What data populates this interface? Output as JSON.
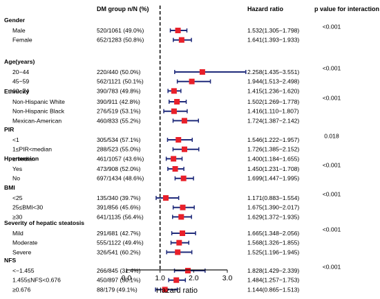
{
  "headers": {
    "dm": "DM group n/N (%)",
    "hr": "Hazard ratio",
    "p": "p value for interaction"
  },
  "chart_data": {
    "type": "forest",
    "xlabel": "Hazard ratio",
    "xlim": [
      0.0,
      3.0
    ],
    "xticks": [
      "0.0",
      "1.0",
      "2.0",
      "3.0"
    ],
    "reference_line": 1.0,
    "marker_color": "#e8202a",
    "ci_color": "#1f2a7a",
    "groups": [
      {
        "label": "Gender",
        "p": "<0.001",
        "rows": [
          {
            "label": "Male",
            "n": "520/1061 (49.0%)",
            "hr": 1.532,
            "lo": 1.305,
            "hi": 1.798,
            "text": "1.532(1.305−1.798)"
          },
          {
            "label": "Female",
            "n": "652/1283 (50.8%)",
            "hr": 1.641,
            "lo": 1.393,
            "hi": 1.933,
            "text": "1.641(1.393−1.933)"
          }
        ]
      },
      {
        "label": "Age(years)",
        "p": "<0.001",
        "rows": [
          {
            "label": "20−44",
            "n": "220/440 (50.0%)",
            "hr": 2.258,
            "lo": 1.435,
            "hi": 3.551,
            "text": "2.258(1.435−3.551)"
          },
          {
            "label": "45−59",
            "n": "562/1121 (50.1%)",
            "hr": 1.944,
            "lo": 1.513,
            "hi": 2.498,
            "text": "1.944(1.513−2.498)"
          },
          {
            "label": "60−74",
            "n": "390/783 (49.8%)",
            "hr": 1.415,
            "lo": 1.236,
            "hi": 1.62,
            "text": "1.415(1.236−1.620)"
          }
        ]
      },
      {
        "label": "Ethnicity",
        "p": "<0.001",
        "rows": [
          {
            "label": "Non-Hispanic White",
            "n": "390/911 (42.8%)",
            "hr": 1.502,
            "lo": 1.269,
            "hi": 1.778,
            "text": "1.502(1.269−1.778)"
          },
          {
            "label": "Non-Hispanic Black",
            "n": "276/519 (53.1%)",
            "hr": 1.416,
            "lo": 1.11,
            "hi": 1.807,
            "text": "1.416(1.110−1.807)"
          },
          {
            "label": "Mexican-American",
            "n": "460/833 (55.2%)",
            "hr": 1.724,
            "lo": 1.387,
            "hi": 2.142,
            "text": "1.724(1.387−2.142)"
          }
        ]
      },
      {
        "label": "PIR",
        "p": "0.018",
        "rows": [
          {
            "label": "<1",
            "n": "305/534 (57.1%)",
            "hr": 1.546,
            "lo": 1.222,
            "hi": 1.957,
            "text": "1.546(1.222−1.957)"
          },
          {
            "label": "1≤PIR<median",
            "n": "288/523 (55.0%)",
            "hr": 1.726,
            "lo": 1.385,
            "hi": 2.152,
            "text": "1.726(1.385−2.152)"
          },
          {
            "label": "≥median",
            "n": "461/1057 (43.6%)",
            "hr": 1.4,
            "lo": 1.184,
            "hi": 1.655,
            "text": "1.400(1.184−1.655)"
          }
        ]
      },
      {
        "label": "Hpertension",
        "p": "<0.001",
        "rows": [
          {
            "label": "Yes",
            "n": "473/908 (52.0%)",
            "hr": 1.45,
            "lo": 1.231,
            "hi": 1.708,
            "text": "1.450(1.231−1.708)"
          },
          {
            "label": "No",
            "n": "697/1434 (48.6%)",
            "hr": 1.699,
            "lo": 1.447,
            "hi": 1.995,
            "text": "1.699(1.447−1.995)"
          }
        ]
      },
      {
        "label": "BMI",
        "p": "<0.001",
        "rows": [
          {
            "label": "<25",
            "n": "135/340 (39.7%)",
            "hr": 1.171,
            "lo": 0.883,
            "hi": 1.554,
            "text": "1.171(0.883−1.554)"
          },
          {
            "label": "25≤BMI<30",
            "n": "391/856 (45.6%)",
            "hr": 1.675,
            "lo": 1.39,
            "hi": 2.017,
            "text": "1.675(1.390−2.017)"
          },
          {
            "label": "≥30",
            "n": "641/1135 (56.4%)",
            "hr": 1.629,
            "lo": 1.372,
            "hi": 1.935,
            "text": "1.629(1.372−1.935)"
          }
        ]
      },
      {
        "label": "Severity of hepatic steatosis",
        "p": "<0.001",
        "rows": [
          {
            "label": "Mild",
            "n": "291/681 (42.7%)",
            "hr": 1.665,
            "lo": 1.348,
            "hi": 2.056,
            "text": "1.665(1.348−2.056)"
          },
          {
            "label": "Moderate",
            "n": "555/1122 (49.4%)",
            "hr": 1.568,
            "lo": 1.326,
            "hi": 1.855,
            "text": "1.568(1.326−1.855)"
          },
          {
            "label": "Severe",
            "n": "326/541 (60.2%)",
            "hr": 1.525,
            "lo": 1.196,
            "hi": 1.945,
            "text": "1.525(1.196−1.945)"
          }
        ]
      },
      {
        "label": "NFS",
        "p": "<0.001",
        "rows": [
          {
            "label": "<−1.455",
            "n": "266/845 (31.4%)",
            "hr": 1.828,
            "lo": 1.429,
            "hi": 2.339,
            "text": "1.828(1.429−2.339)"
          },
          {
            "label": "1.455≤NFS<0.676",
            "n": "450/897 (50.1%)",
            "hr": 1.484,
            "lo": 1.257,
            "hi": 1.753,
            "text": "1.484(1.257−1.753)"
          },
          {
            "label": "≥0.676",
            "n": "88/179 (49.1%)",
            "hr": 1.144,
            "lo": 0.865,
            "hi": 1.513,
            "text": "1.144(0.865−1.513)"
          }
        ]
      }
    ]
  }
}
